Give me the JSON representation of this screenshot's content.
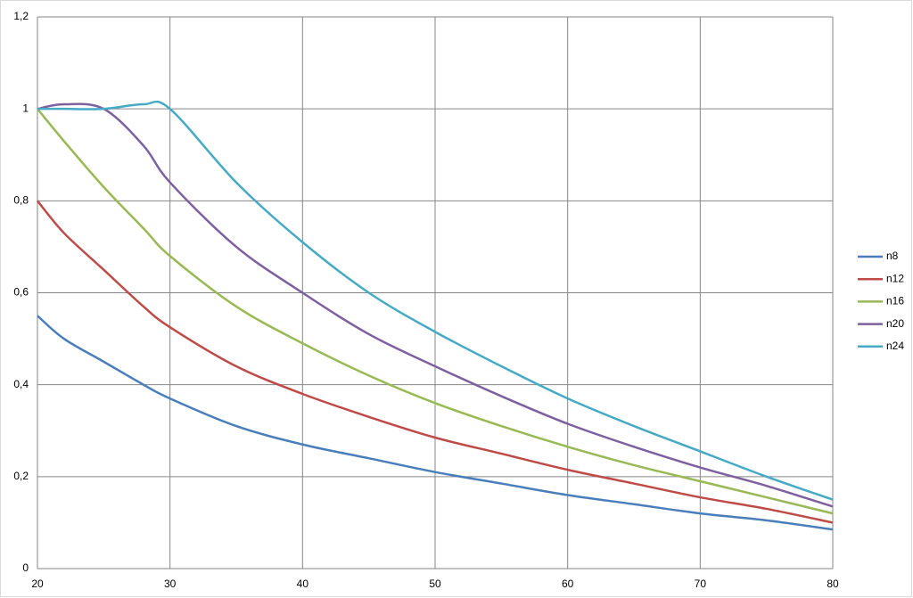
{
  "chart_data": {
    "type": "line",
    "x": [
      20,
      22,
      25,
      28,
      30,
      35,
      40,
      45,
      50,
      55,
      60,
      65,
      70,
      75,
      80
    ],
    "series": [
      {
        "name": "n8",
        "color": "#4a7ebb",
        "values": [
          0.55,
          0.5,
          0.45,
          0.4,
          0.37,
          0.31,
          0.27,
          0.24,
          0.21,
          0.185,
          0.16,
          0.14,
          0.12,
          0.105,
          0.085
        ]
      },
      {
        "name": "n12",
        "color": "#be4b48",
        "values": [
          0.8,
          0.73,
          0.65,
          0.57,
          0.525,
          0.44,
          0.38,
          0.33,
          0.285,
          0.25,
          0.215,
          0.185,
          0.155,
          0.13,
          0.1
        ]
      },
      {
        "name": "n16",
        "color": "#98b954",
        "values": [
          1,
          0.93,
          0.83,
          0.74,
          0.68,
          0.57,
          0.49,
          0.42,
          0.36,
          0.31,
          0.265,
          0.225,
          0.19,
          0.155,
          0.12
        ]
      },
      {
        "name": "n20",
        "color": "#7d60a0",
        "values": [
          1,
          1.01,
          1,
          0.92,
          0.84,
          0.7,
          0.6,
          0.51,
          0.44,
          0.375,
          0.315,
          0.265,
          0.22,
          0.18,
          0.135
        ]
      },
      {
        "name": "n24",
        "color": "#46aac5",
        "values": [
          1,
          1,
          1,
          1.01,
          1,
          0.84,
          0.71,
          0.6,
          0.515,
          0.44,
          0.37,
          0.31,
          0.255,
          0.2,
          0.15
        ]
      }
    ],
    "xlim": [
      20,
      80
    ],
    "xticks": [
      20,
      30,
      40,
      50,
      60,
      70,
      80
    ],
    "ylim": [
      0,
      1.2
    ],
    "yticks": [
      0,
      {
        "value": 0.2,
        "label": "0,2"
      },
      {
        "value": 0.4,
        "label": "0,4"
      },
      {
        "value": 0.6,
        "label": "0,6"
      },
      {
        "value": 0.8,
        "label": "0,8"
      },
      1,
      {
        "value": 1.2,
        "label": "1,2"
      }
    ],
    "grid": true,
    "legend": "right"
  }
}
